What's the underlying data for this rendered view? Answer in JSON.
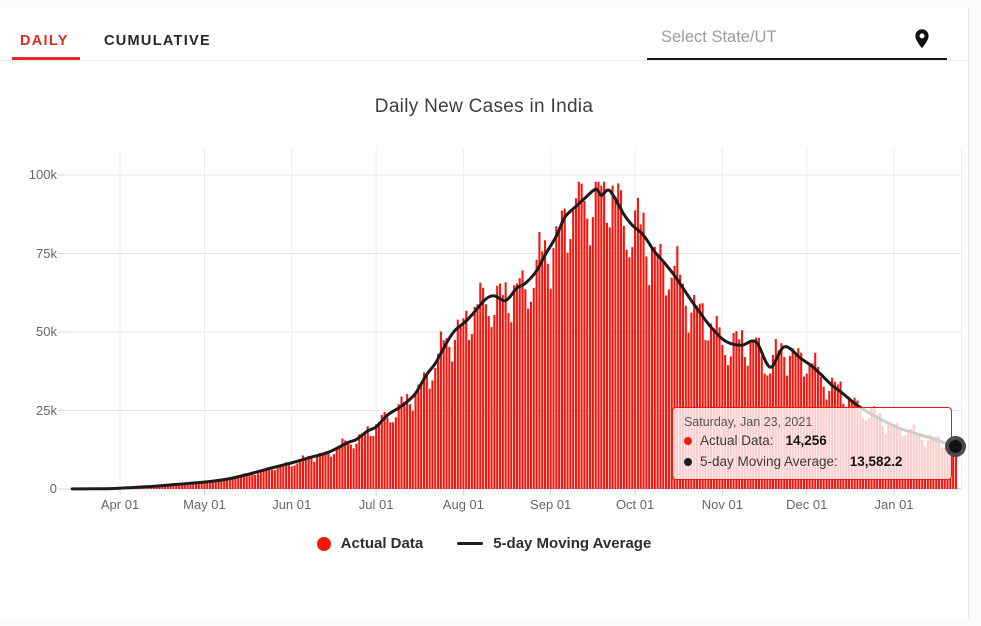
{
  "theme": {
    "page_bg": "#fafafa",
    "card_bg": "#ffffff",
    "tab_red": "#e02b20",
    "bar_red": "#f3180f",
    "line_dark": "#1c1c1c",
    "grid_horizontal": "#e7e7e7",
    "grid_vertical": "#eaedf4",
    "axis_blue": "#ccd6eb",
    "label_gray": "#62666d"
  },
  "tabs": [
    {
      "label": "DAILY",
      "active": true
    },
    {
      "label": "CUMULATIVE",
      "active": false
    }
  ],
  "state_selector": {
    "placeholder": "Select State/UT",
    "icon": "location-pin-icon"
  },
  "chart": {
    "title": "Daily New Cases in India",
    "legend": [
      {
        "label": "Actual Data",
        "marker": "circle",
        "color": "#f3180f"
      },
      {
        "label": "5-day Moving Average",
        "marker": "line",
        "color": "#1c1c1c"
      }
    ],
    "tooltip": {
      "date": "Saturday, Jan 23, 2021",
      "rows": [
        {
          "label": "Actual Data:",
          "value": "14,256",
          "color": "#f3180f"
        },
        {
          "label": "5-day Moving Average:",
          "value": "13,582.2",
          "color": "#1c1c1c"
        }
      ]
    }
  },
  "chart_data": {
    "type": "combo",
    "title": "Daily New Cases in India",
    "x_axis": {
      "start_date": "2020-03-15",
      "end_date": "2021-01-23",
      "days_total": 315,
      "tick_labels": [
        "Apr 01",
        "May 01",
        "Jun 01",
        "Jul 01",
        "Aug 01",
        "Sep 01",
        "Oct 01",
        "Nov 01",
        "Dec 01",
        "Jan 01"
      ],
      "tick_day_offsets": [
        17,
        47,
        78,
        108,
        139,
        170,
        200,
        231,
        261,
        292
      ]
    },
    "y_axis": {
      "tick_labels": [
        "0",
        "25k",
        "50k",
        "75k",
        "100k"
      ],
      "tick_values": [
        0,
        25000,
        50000,
        75000,
        100000
      ],
      "min": 0,
      "max": 100000
    },
    "grid": true,
    "legend_position": "bottom",
    "series": [
      {
        "name": "Actual Data",
        "type": "bar",
        "color": "#f3180f",
        "peak_value": 97850,
        "last_value": 14256
      },
      {
        "name": "5-day Moving Average",
        "type": "line",
        "color": "#1c1c1c",
        "last_value": 13582.2,
        "anchor_points_day_value": [
          [
            0,
            25
          ],
          [
            7,
            70
          ],
          [
            14,
            120
          ],
          [
            21,
            450
          ],
          [
            28,
            800
          ],
          [
            35,
            1300
          ],
          [
            42,
            1800
          ],
          [
            49,
            2400
          ],
          [
            56,
            3300
          ],
          [
            63,
            4800
          ],
          [
            70,
            6500
          ],
          [
            77,
            8100
          ],
          [
            84,
            9900
          ],
          [
            91,
            11700
          ],
          [
            98,
            14800
          ],
          [
            101,
            15800
          ],
          [
            105,
            18500
          ],
          [
            108,
            19800
          ],
          [
            112,
            23500
          ],
          [
            116,
            25800
          ],
          [
            119,
            27800
          ],
          [
            122,
            30500
          ],
          [
            126,
            36500
          ],
          [
            129,
            40000
          ],
          [
            133,
            46500
          ],
          [
            136,
            50500
          ],
          [
            140,
            53500
          ],
          [
            143,
            56500
          ],
          [
            147,
            60500
          ],
          [
            150,
            61500
          ],
          [
            154,
            60000
          ],
          [
            158,
            64000
          ],
          [
            161,
            65500
          ],
          [
            165,
            69500
          ],
          [
            168,
            74500
          ],
          [
            172,
            80500
          ],
          [
            175,
            86500
          ],
          [
            179,
            90000
          ],
          [
            182,
            92500
          ],
          [
            186,
            95500
          ],
          [
            188,
            93500
          ],
          [
            191,
            95000
          ],
          [
            196,
            87500
          ],
          [
            199,
            84000
          ],
          [
            203,
            80800
          ],
          [
            207,
            75500
          ],
          [
            210,
            72500
          ],
          [
            214,
            68000
          ],
          [
            217,
            64000
          ],
          [
            220,
            60000
          ],
          [
            224,
            55000
          ],
          [
            227,
            51500
          ],
          [
            231,
            47800
          ],
          [
            234,
            46300
          ],
          [
            238,
            45800
          ],
          [
            243,
            46800
          ],
          [
            248,
            38800
          ],
          [
            253,
            45300
          ],
          [
            259,
            41500
          ],
          [
            263,
            39000
          ],
          [
            266,
            36500
          ],
          [
            270,
            33000
          ],
          [
            273,
            31000
          ],
          [
            277,
            28000
          ],
          [
            280,
            26000
          ],
          [
            284,
            23800
          ],
          [
            287,
            22300
          ],
          [
            290,
            21000
          ],
          [
            294,
            19300
          ],
          [
            298,
            18200
          ],
          [
            301,
            17300
          ],
          [
            305,
            16300
          ],
          [
            308,
            15300
          ],
          [
            311,
            14400
          ],
          [
            314,
            13582.2
          ]
        ]
      }
    ],
    "weekly_pattern": [
      1.03,
      0.9,
      0.86,
      0.97,
      1.04,
      1.08,
      1.05
    ],
    "highlight_point": {
      "date": "Saturday, Jan 23, 2021",
      "actual": 14256,
      "moving_average": 13582.2
    }
  }
}
